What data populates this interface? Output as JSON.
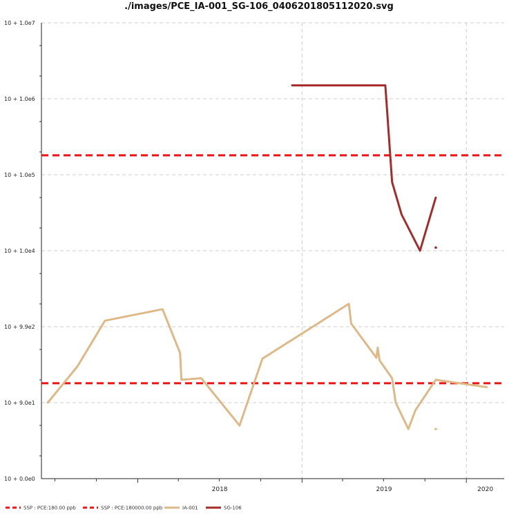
{
  "chart_data": {
    "type": "line",
    "title": "./images/PCE_IA-001_SG-106_0406201805112020.svg",
    "yscale": "log",
    "y_tick_labels": [
      "10 + 1.0e7",
      "10 + 1.0e6",
      "10 + 1.0e5",
      "10 + 1.0e4",
      "10 + 9.9e2",
      "10 + 9.0e1",
      "10 + 0.0e0"
    ],
    "x_tick_labels": [
      "2018",
      "2019",
      "2020"
    ],
    "x_ticks": [
      "2018-01-01",
      "2019-01-01",
      "2020-01-01"
    ],
    "xlim": [
      "2017-06-01",
      "2020-03-25"
    ],
    "grid": true,
    "legend_position": "bottom",
    "thresholds": [
      {
        "name": "SSP : PCE:180.00 ppb",
        "value": 180,
        "color": "#ee1111"
      },
      {
        "name": "SSP : PCE:180000.00 ppb",
        "value": 180000,
        "color": "#ee1111"
      }
    ],
    "series": [
      {
        "name": "IA-001",
        "color": "#deb887",
        "points": [
          [
            "2017-06-15",
            100
          ],
          [
            "2017-08-20",
            300
          ],
          [
            "2017-10-20",
            1200
          ],
          [
            "2018-02-25",
            1700
          ],
          [
            "2018-04-05",
            450
          ],
          [
            "2018-04-08",
            200
          ],
          [
            "2018-05-22",
            210
          ],
          [
            "2018-08-15",
            50
          ],
          [
            "2018-10-05",
            380
          ],
          [
            "2019-04-15",
            2000
          ],
          [
            "2019-04-20",
            1100
          ],
          [
            "2019-06-15",
            390
          ],
          [
            "2019-06-18",
            530
          ],
          [
            "2019-06-22",
            360
          ],
          [
            "2019-07-20",
            210
          ],
          [
            "2019-07-28",
            100
          ],
          [
            "2019-08-25",
            45
          ],
          [
            "2019-09-10",
            80
          ],
          [
            "2019-10-25",
            200
          ],
          [
            "2020-02-15",
            160
          ]
        ],
        "isolated_points": [
          [
            "2019-10-25",
            45
          ]
        ]
      },
      {
        "name": "SG-106",
        "color": "#a52a2a",
        "points": [
          [
            "2018-12-10",
            1500000
          ],
          [
            "2019-07-05",
            1500000
          ],
          [
            "2019-07-20",
            80000
          ],
          [
            "2019-08-10",
            30000
          ],
          [
            "2019-09-20",
            10000
          ],
          [
            "2019-10-25",
            50000
          ]
        ],
        "isolated_points": [
          [
            "2019-10-25",
            11000
          ]
        ]
      }
    ]
  }
}
